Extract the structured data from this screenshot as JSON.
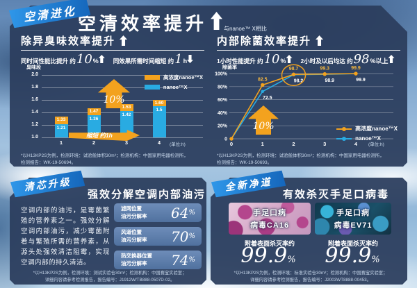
{
  "ribbons": {
    "evolution": "空清进化",
    "core_upgrade": "清芯升级",
    "new_clean": "全新净道"
  },
  "header": {
    "title": "空清效率提升",
    "compare_note": "与nanoe™ X相比"
  },
  "deodor": {
    "heading": "除异臭味效率提升",
    "stat1_prefix": "同时间性能比提升 约",
    "stat1_value": "10",
    "stat1_unit": "%",
    "stat2_prefix": "同效果所需时间缩短 约",
    "stat2_value": "1",
    "stat2_unit": "h",
    "footnote1": "*以H13KP2S为例，检测环境：试验舱体积30m³；检测机构：中国家用电器检测所，",
    "footnote2": "检测报告：WK-19-50694。"
  },
  "sterilize": {
    "heading": "内部除菌效率提升",
    "stat1_prefix": "1小时性能提升 约",
    "stat1_value": "10",
    "stat1_unit": "%",
    "stat2_prefix": "2小时及以后均达 约",
    "stat2_value": "98",
    "stat2_unit": "%以上",
    "footnote1": "*以H13KP2S为例，检测环境：试验舱体积30m³；检测机构：中国家用电器检测所，",
    "footnote2": "检测报告：WK-19-50693。"
  },
  "oil_section": {
    "title": "强效分解空调内部油污",
    "paragraph": "空调内部的油污，是霉菌繁殖的营养素之一。强效分解空调内部油污，减少霉菌附着与繁殖所需的营养素，从源头处强效清洁阻霉，实现空调内部的持久清洁。",
    "stats": [
      {
        "label1": "滤网位置",
        "label2": "油污分解率",
        "value": "64",
        "unit": "%"
      },
      {
        "label1": "风道位置",
        "label2": "油污分解率",
        "value": "70",
        "unit": "%"
      },
      {
        "label1": "热交换器位置",
        "label2": "油污分解率",
        "value": "74",
        "unit": "%"
      }
    ],
    "footnote1": "*以H13KP2S为例，检测环境：测试实验仓30m³；检测机构：中国赛宝实验室；",
    "footnote2": "详细内容请参考检测报告，报告编号：J1912W/TB888-0507D-02。"
  },
  "virus_section": {
    "title": "有效杀灭手足口病毒",
    "cards": [
      {
        "line1": "手足口病",
        "line2": "病毒CA16",
        "rate_label": "附着表面杀灭率约",
        "value": "99.9",
        "unit": "%"
      },
      {
        "line1": "手足口病",
        "line2": "病毒EV71",
        "rate_label": "附着表面杀灭率约",
        "value": "99.9",
        "unit": "%"
      }
    ],
    "footnote1": "*以H13KP2S为例，检测环境：标准实验仓30m³；检测机构：中国赛宝实验室；",
    "footnote2": "详细内容请参考检测报告，报告编号：J2003WT8888-00453。"
  },
  "chart_data": [
    {
      "type": "bar",
      "title": "除异臭味效率提升",
      "ylabel": "臭味段",
      "xlabel": "(单位:h)",
      "categories": [
        "1",
        "2",
        "3",
        "4"
      ],
      "ylim": [
        1.0,
        2.0
      ],
      "yticks": [
        "2.0",
        "1.8",
        "1.6",
        "1.4",
        "1.2",
        "1.0"
      ],
      "series": [
        {
          "name": "高浓度nanoe™X",
          "color": "#F3A21E",
          "values": [
            1.33,
            1.47,
            1.53,
            1.6
          ],
          "labels": [
            "1.33",
            "1.47",
            "1.53",
            "1.60"
          ]
        },
        {
          "name": "nanoe™X",
          "color": "#29ABE2",
          "values": [
            1.21,
            1.36,
            1.42,
            1.5
          ],
          "labels": [
            "1.21",
            "1.36",
            "1.42",
            "1.5"
          ]
        }
      ],
      "annotations": [
        "10%",
        "缩短 约1h"
      ],
      "legend_position": "top-right",
      "grid": true
    },
    {
      "type": "line",
      "title": "内部除菌效率提升",
      "ylabel": "除菌率",
      "xlabel": "(单位:h)",
      "x": [
        0,
        1,
        2,
        3,
        4
      ],
      "ylim": [
        0,
        100
      ],
      "yticks": [
        "100%",
        "80%",
        "60%",
        "40%",
        "20%",
        "0"
      ],
      "series": [
        {
          "name": "高浓度nanoe™X",
          "color": "#F3A21E",
          "values": [
            0,
            82.5,
            98.7,
            99.3,
            99.9
          ],
          "labels": [
            "",
            "82.5",
            "98.7",
            "99.3",
            "99.9"
          ]
        },
        {
          "name": "nanoe™X",
          "color": "#29ABE2",
          "values": [
            0,
            72.5,
            98.2,
            98.9,
            99.9
          ],
          "labels": [
            "",
            "72.5",
            "98.2",
            "98.9",
            "99.9"
          ]
        }
      ],
      "highlight": {
        "series": 0,
        "index": 2
      },
      "annotations": [
        "10%"
      ],
      "legend_position": "bottom-right",
      "grid": true
    }
  ],
  "colors": {
    "orange": "#F3A21E",
    "blue": "#29ABE2",
    "panel": "#2C3E5E",
    "ribbon": "#1C7BD4"
  }
}
